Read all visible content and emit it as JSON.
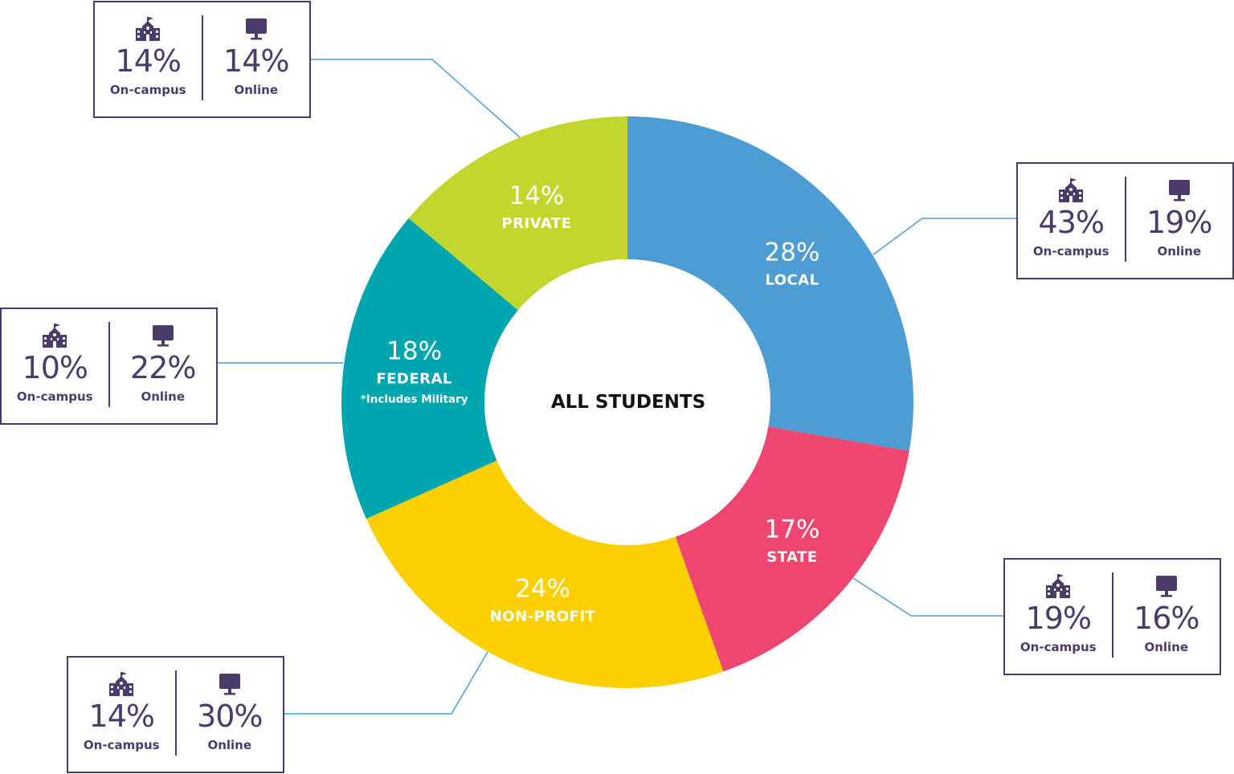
{
  "chart_data": {
    "type": "pie",
    "title": "ALL STUDENTS",
    "segments": [
      {
        "name": "LOCAL",
        "value": 28,
        "label": "28%",
        "note": "",
        "color": "#4d9dd4"
      },
      {
        "name": "STATE",
        "value": 17,
        "label": "17%",
        "note": "",
        "color": "#ef4670"
      },
      {
        "name": "NON-PROFIT",
        "value": 24,
        "label": "24%",
        "note": "",
        "color": "#fcd000"
      },
      {
        "name": "FEDERAL",
        "value": 18,
        "label": "18%",
        "note": "*Includes Military",
        "color": "#00a6ae"
      },
      {
        "name": "PRIVATE",
        "value": 14,
        "label": "14%",
        "note": "",
        "color": "#c3d62e"
      }
    ]
  },
  "callouts": [
    {
      "segment": "PRIVATE",
      "on_campus": "14%",
      "online": "14%"
    },
    {
      "segment": "LOCAL",
      "on_campus": "43%",
      "online": "19%"
    },
    {
      "segment": "FEDERAL",
      "on_campus": "10%",
      "online": "22%"
    },
    {
      "segment": "STATE",
      "on_campus": "19%",
      "online": "16%"
    },
    {
      "segment": "NON-PROFIT",
      "on_campus": "14%",
      "online": "30%"
    }
  ],
  "labels": {
    "on_campus": "On-campus",
    "online": "Online"
  },
  "icons": {
    "on_campus": "school-building-icon",
    "online": "computer-monitor-icon"
  },
  "colors": {
    "text": "#4b3b6b",
    "connector": "#4d9dd4"
  }
}
